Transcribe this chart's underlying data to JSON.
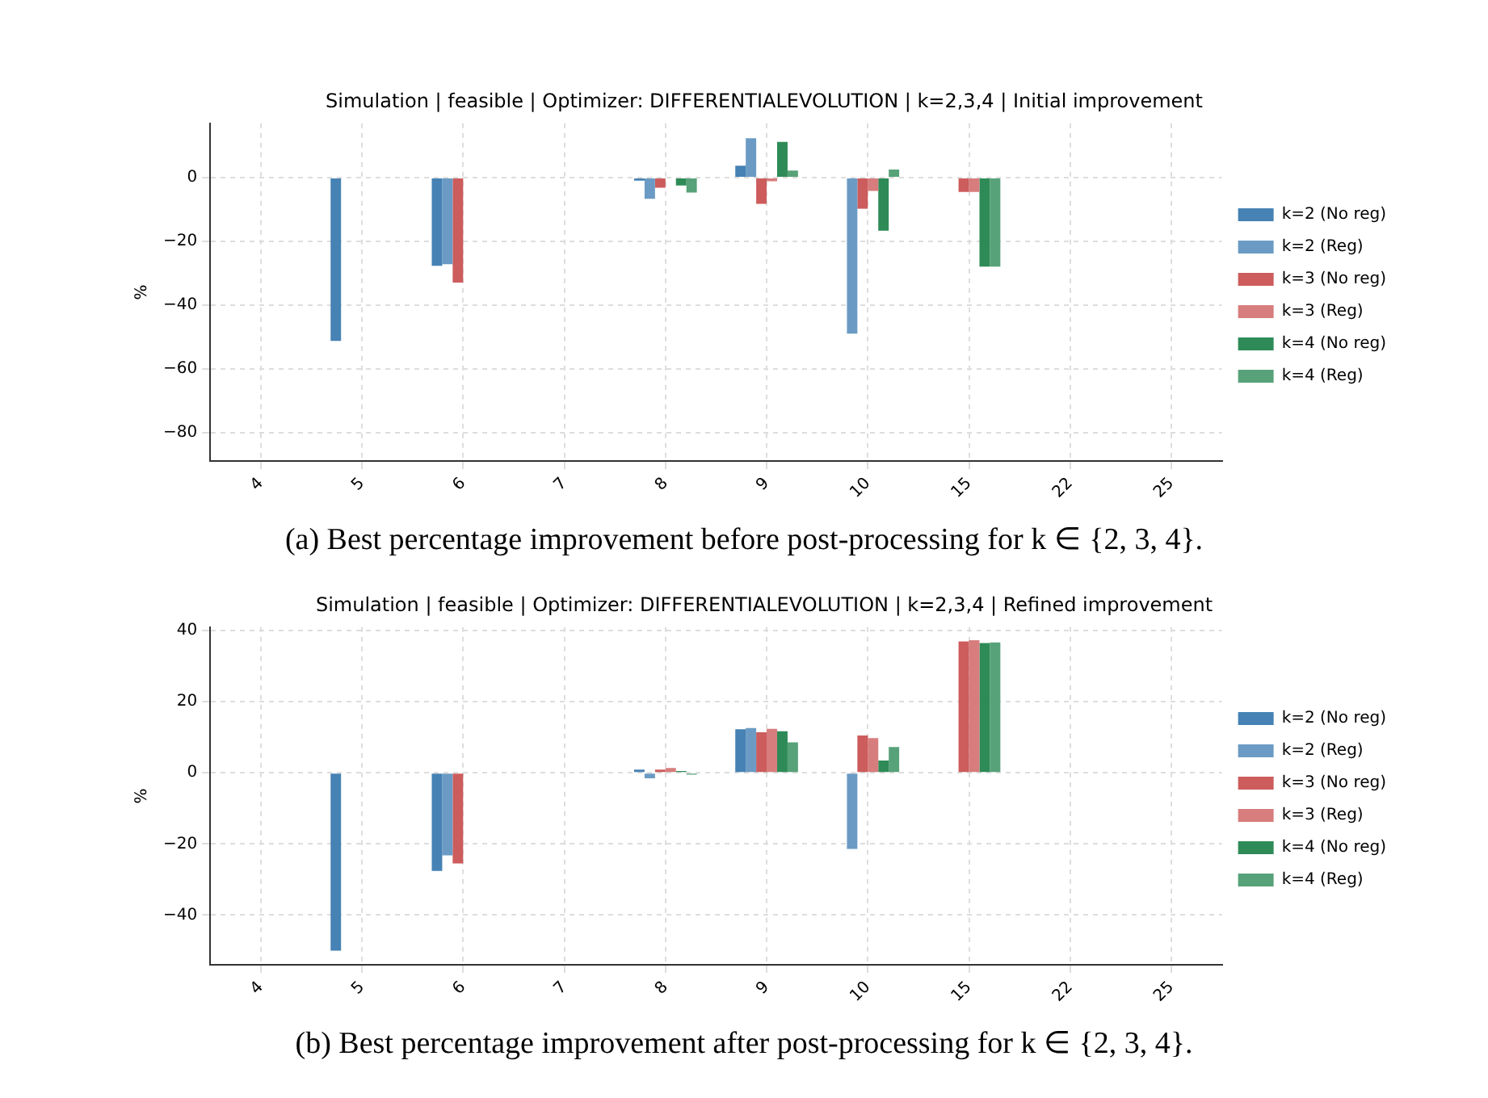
{
  "chart_data": [
    {
      "type": "bar",
      "title": "Simulation | feasible | Optimizer: DIFFERENTIALEVOLUTION | k=2,3,4 | Initial improvement",
      "ylabel": "%",
      "categories": [
        "4",
        "5",
        "6",
        "7",
        "8",
        "9",
        "10",
        "15",
        "22",
        "25"
      ],
      "series": [
        {
          "name": "k=2 (No reg)",
          "color": "#4682b4",
          "values": [
            0,
            -51.3,
            -27.7,
            0,
            -1,
            3.7,
            0,
            0,
            null,
            null
          ]
        },
        {
          "name": "k=2 (Reg)",
          "color": "#6b9bc4",
          "values": [
            0,
            0,
            -27.2,
            0,
            -6.7,
            12.3,
            -49,
            0,
            null,
            null
          ]
        },
        {
          "name": "k=3 (No reg)",
          "color": "#cd5c5c",
          "values": [
            0,
            0,
            -33,
            0,
            -3.2,
            -8.3,
            -9.8,
            -4.5,
            null,
            null
          ]
        },
        {
          "name": "k=3 (Reg)",
          "color": "#d77d7d",
          "values": [
            0,
            0,
            0,
            0,
            0,
            -1.2,
            -4.2,
            -4.5,
            null,
            null
          ]
        },
        {
          "name": "k=4 (No reg)",
          "color": "#2e8b57",
          "values": [
            0,
            0,
            0,
            0,
            -2.5,
            11.2,
            -16.7,
            -28,
            null,
            null
          ]
        },
        {
          "name": "k=4 (Reg)",
          "color": "#58a279",
          "values": [
            0,
            0,
            0,
            0,
            -4.7,
            2.2,
            2.5,
            -28,
            null,
            null
          ]
        }
      ],
      "ylim": [
        -89,
        17
      ],
      "yticks": [
        -80,
        -60,
        -40,
        -20,
        0
      ],
      "grid": true,
      "legend": "right",
      "annotations": [
        "(a) Best percentage improvement before post-processing for k ∈ {2, 3, 4}."
      ]
    },
    {
      "type": "bar",
      "title": "Simulation | feasible | Optimizer: DIFFERENTIALEVOLUTION | k=2,3,4 | Refined improvement",
      "ylabel": "%",
      "categories": [
        "4",
        "5",
        "6",
        "7",
        "8",
        "9",
        "10",
        "15",
        "22",
        "25"
      ],
      "series": [
        {
          "name": "k=2 (No reg)",
          "color": "#4682b4",
          "values": [
            0,
            -50,
            -27.6,
            0,
            0.9,
            12.3,
            0,
            0,
            null,
            null
          ]
        },
        {
          "name": "k=2 (Reg)",
          "color": "#6b9bc4",
          "values": [
            0,
            0,
            -23.2,
            0,
            -1.5,
            12.6,
            -21.4,
            0,
            null,
            null
          ]
        },
        {
          "name": "k=3 (No reg)",
          "color": "#cd5c5c",
          "values": [
            0,
            0,
            -25.5,
            0,
            0.9,
            11.4,
            10.5,
            37,
            null,
            null
          ]
        },
        {
          "name": "k=3 (Reg)",
          "color": "#d77d7d",
          "values": [
            0,
            0,
            0,
            0,
            1.4,
            12.4,
            9.8,
            37.3,
            null,
            null
          ]
        },
        {
          "name": "k=4 (No reg)",
          "color": "#2e8b57",
          "values": [
            0,
            0,
            0,
            0,
            0.5,
            11.7,
            3.5,
            36.5,
            null,
            null
          ]
        },
        {
          "name": "k=4 (Reg)",
          "color": "#58a279",
          "values": [
            0,
            0,
            0,
            0,
            -0.5,
            8.6,
            7.3,
            36.7,
            null,
            null
          ]
        }
      ],
      "ylim": [
        -54,
        41
      ],
      "yticks": [
        -40,
        -20,
        0,
        20,
        40
      ],
      "grid": true,
      "legend": "right",
      "annotations": [
        "(b) Best percentage improvement after post-processing for k ∈ {2, 3, 4}."
      ]
    }
  ]
}
